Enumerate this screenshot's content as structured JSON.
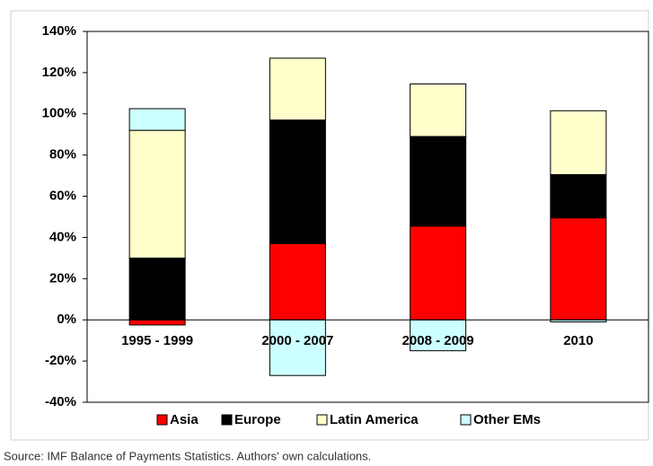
{
  "chart_data": {
    "type": "bar",
    "stacked": true,
    "categories": [
      "1995 - 1999",
      "2000 - 2007",
      "2008 - 2009",
      "2010"
    ],
    "series": [
      {
        "name": "Asia",
        "color": "#ff0000",
        "values": [
          -2.5,
          37,
          45.5,
          49.5
        ]
      },
      {
        "name": "Europe",
        "color": "#000000",
        "values": [
          30,
          60,
          43.5,
          21
        ]
      },
      {
        "name": "Latin America",
        "color": "#ffffcc",
        "values": [
          62,
          30,
          25.5,
          31
        ]
      },
      {
        "name": "Other EMs",
        "color": "#ccffff",
        "values": [
          10.5,
          -27,
          -15,
          -1
        ]
      }
    ],
    "ylim": [
      -40,
      140
    ],
    "yticks": [
      {
        "value": -40,
        "label": "-40%"
      },
      {
        "value": -20,
        "label": "-20%"
      },
      {
        "value": 0,
        "label": "0%"
      },
      {
        "value": 20,
        "label": "20%"
      },
      {
        "value": 40,
        "label": "40%"
      },
      {
        "value": 60,
        "label": "60%"
      },
      {
        "value": 80,
        "label": "80%"
      },
      {
        "value": 100,
        "label": "100%"
      },
      {
        "value": 120,
        "label": "120%"
      },
      {
        "value": 140,
        "label": "140%"
      }
    ],
    "grid": false,
    "legend": "bottom",
    "source": "Source: IMF Balance of Payments Statistics. Authors' own calculations."
  }
}
